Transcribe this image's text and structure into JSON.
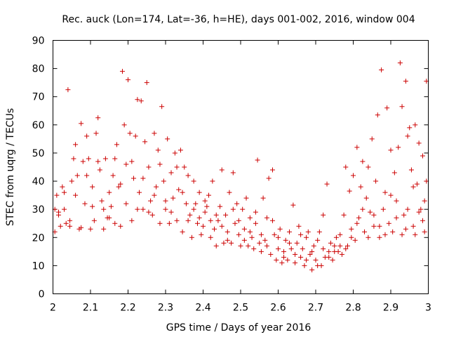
{
  "chart_data": {
    "type": "scatter",
    "title": "Rec. auck (Lon=174, Lat=-36, h=HE), days 001-002, 2016, window 004",
    "xlabel": "GPS time / Days of year 2016",
    "ylabel": "STEC from uqrg / TECUs",
    "xlim": [
      2,
      3
    ],
    "ylim": [
      0,
      90
    ],
    "xticks": [
      2,
      2.1,
      2.2,
      2.3,
      2.4,
      2.5,
      2.6,
      2.7,
      2.8,
      2.9,
      3
    ],
    "xtick_labels": [
      "2",
      "2.1",
      "2.2",
      "2.3",
      "2.4",
      "2.5",
      "2.6",
      "2.7",
      "2.8",
      "2.9",
      "3"
    ],
    "yticks": [
      0,
      10,
      20,
      30,
      40,
      50,
      60,
      70,
      80,
      90
    ],
    "ytick_labels": [
      "0",
      "10",
      "20",
      "30",
      "40",
      "50",
      "60",
      "70",
      "80",
      "90"
    ],
    "grid": false,
    "marker": "+",
    "color": "#cc0000",
    "series": [
      {
        "name": "STEC",
        "points": [
          [
            2.005,
            30
          ],
          [
            2.005,
            22
          ],
          [
            2.01,
            35
          ],
          [
            2.015,
            29
          ],
          [
            2.02,
            24
          ],
          [
            2.025,
            38
          ],
          [
            2.03,
            30
          ],
          [
            2.035,
            25
          ],
          [
            2.04,
            72.5
          ],
          [
            2.045,
            24
          ],
          [
            2.05,
            40
          ],
          [
            2.055,
            48
          ],
          [
            2.06,
            53
          ],
          [
            2.065,
            42
          ],
          [
            2.07,
            23
          ],
          [
            2.075,
            60.5
          ],
          [
            2.08,
            47
          ],
          [
            2.085,
            32
          ],
          [
            2.09,
            56
          ],
          [
            2.095,
            48
          ],
          [
            2.1,
            23
          ],
          [
            2.105,
            38
          ],
          [
            2.11,
            26
          ],
          [
            2.115,
            57
          ],
          [
            2.12,
            62.5
          ],
          [
            2.125,
            44
          ],
          [
            2.13,
            33
          ],
          [
            2.135,
            23
          ],
          [
            2.14,
            48
          ],
          [
            2.145,
            27
          ],
          [
            2.15,
            36
          ],
          [
            2.155,
            31
          ],
          [
            2.16,
            42
          ],
          [
            2.165,
            48
          ],
          [
            2.17,
            53
          ],
          [
            2.175,
            38
          ],
          [
            2.18,
            24
          ],
          [
            2.185,
            79
          ],
          [
            2.19,
            60
          ],
          [
            2.195,
            46
          ],
          [
            2.2,
            76
          ],
          [
            2.205,
            57
          ],
          [
            2.21,
            26
          ],
          [
            2.215,
            41
          ],
          [
            2.22,
            56
          ],
          [
            2.225,
            69
          ],
          [
            2.23,
            36
          ],
          [
            2.235,
            68.5
          ],
          [
            2.24,
            30
          ],
          [
            2.245,
            54
          ],
          [
            2.25,
            75
          ],
          [
            2.255,
            45
          ],
          [
            2.26,
            33
          ],
          [
            2.265,
            28
          ],
          [
            2.27,
            57
          ],
          [
            2.275,
            38
          ],
          [
            2.28,
            51
          ],
          [
            2.285,
            25
          ],
          [
            2.29,
            66.5
          ],
          [
            2.295,
            40
          ],
          [
            2.3,
            30
          ],
          [
            2.305,
            55
          ],
          [
            2.31,
            25
          ],
          [
            2.315,
            43
          ],
          [
            2.32,
            34
          ],
          [
            2.325,
            50
          ],
          [
            2.33,
            26
          ],
          [
            2.335,
            37
          ],
          [
            2.34,
            51
          ],
          [
            2.345,
            22
          ],
          [
            2.35,
            45
          ],
          [
            2.355,
            32
          ],
          [
            2.36,
            42
          ],
          [
            2.365,
            28
          ],
          [
            2.37,
            20
          ],
          [
            2.375,
            40
          ],
          [
            2.38,
            32
          ],
          [
            2.385,
            25
          ],
          [
            2.39,
            36
          ],
          [
            2.395,
            21
          ],
          [
            2.4,
            24
          ],
          [
            2.405,
            29
          ],
          [
            2.41,
            31
          ],
          [
            2.415,
            35
          ],
          [
            2.42,
            20
          ],
          [
            2.425,
            40
          ],
          [
            2.43,
            23
          ],
          [
            2.435,
            17
          ],
          [
            2.44,
            26
          ],
          [
            2.445,
            31
          ],
          [
            2.45,
            44
          ],
          [
            2.455,
            18
          ],
          [
            2.46,
            28
          ],
          [
            2.465,
            22
          ],
          [
            2.47,
            36
          ],
          [
            2.475,
            18
          ],
          [
            2.48,
            43
          ],
          [
            2.485,
            25
          ],
          [
            2.49,
            32
          ],
          [
            2.495,
            21
          ],
          [
            2.5,
            17
          ],
          [
            2.505,
            30
          ],
          [
            2.51,
            23
          ],
          [
            2.515,
            34
          ],
          [
            2.52,
            17
          ],
          [
            2.525,
            27
          ],
          [
            2.53,
            20
          ],
          [
            2.535,
            16
          ],
          [
            2.54,
            29
          ],
          [
            2.545,
            47.5
          ],
          [
            2.55,
            18
          ],
          [
            2.555,
            15
          ],
          [
            2.56,
            34
          ],
          [
            2.565,
            19
          ],
          [
            2.57,
            27
          ],
          [
            2.575,
            41
          ],
          [
            2.58,
            14
          ],
          [
            2.585,
            44
          ],
          [
            2.59,
            21
          ],
          [
            2.595,
            12
          ],
          [
            2.6,
            20
          ],
          [
            2.605,
            23
          ],
          [
            2.61,
            11
          ],
          [
            2.615,
            15
          ],
          [
            2.62,
            19
          ],
          [
            2.625,
            12
          ],
          [
            2.63,
            22
          ],
          [
            2.635,
            16
          ],
          [
            2.64,
            31.5
          ],
          [
            2.645,
            11
          ],
          [
            2.65,
            18
          ],
          [
            2.655,
            24
          ],
          [
            2.66,
            13
          ],
          [
            2.665,
            16
          ],
          [
            2.67,
            10
          ],
          [
            2.675,
            20
          ],
          [
            2.68,
            22
          ],
          [
            2.685,
            14
          ],
          [
            2.69,
            8.5
          ],
          [
            2.695,
            17
          ],
          [
            2.7,
            12
          ],
          [
            2.705,
            19
          ],
          [
            2.71,
            22
          ],
          [
            2.715,
            10
          ],
          [
            2.72,
            28
          ],
          [
            2.725,
            13
          ],
          [
            2.73,
            39
          ],
          [
            2.735,
            15
          ],
          [
            2.74,
            18
          ],
          [
            2.745,
            12
          ],
          [
            2.75,
            17
          ],
          [
            2.755,
            20
          ],
          [
            2.76,
            15
          ],
          [
            2.765,
            21
          ],
          [
            2.77,
            14
          ],
          [
            2.775,
            28
          ],
          [
            2.78,
            45
          ],
          [
            2.785,
            17
          ],
          [
            2.79,
            36.5
          ],
          [
            2.795,
            23
          ],
          [
            2.8,
            42
          ],
          [
            2.805,
            19
          ],
          [
            2.81,
            52
          ],
          [
            2.815,
            27
          ],
          [
            2.82,
            38
          ],
          [
            2.825,
            47
          ],
          [
            2.83,
            22
          ],
          [
            2.835,
            34
          ],
          [
            2.84,
            45
          ],
          [
            2.845,
            29
          ],
          [
            2.85,
            55
          ],
          [
            2.855,
            24
          ],
          [
            2.86,
            40
          ],
          [
            2.865,
            63.5
          ],
          [
            2.87,
            20
          ],
          [
            2.875,
            79.5
          ],
          [
            2.88,
            30
          ],
          [
            2.885,
            36
          ],
          [
            2.89,
            66
          ],
          [
            2.895,
            25
          ],
          [
            2.9,
            51
          ],
          [
            2.905,
            22
          ],
          [
            2.91,
            43
          ],
          [
            2.915,
            33
          ],
          [
            2.92,
            52
          ],
          [
            2.925,
            82
          ],
          [
            2.93,
            66.5
          ],
          [
            2.935,
            28
          ],
          [
            2.94,
            75.5
          ],
          [
            2.945,
            56
          ],
          [
            2.95,
            59
          ],
          [
            2.955,
            44
          ],
          [
            2.96,
            24
          ],
          [
            2.965,
            60
          ],
          [
            2.97,
            39
          ],
          [
            2.975,
            53.5
          ],
          [
            2.98,
            30
          ],
          [
            2.985,
            49
          ],
          [
            2.99,
            22
          ],
          [
            2.995,
            75.5
          ],
          [
            2.995,
            40
          ],
          [
            2.015,
            28
          ],
          [
            2.03,
            36
          ],
          [
            2.045,
            26
          ],
          [
            2.06,
            35
          ],
          [
            2.075,
            23.5
          ],
          [
            2.09,
            42
          ],
          [
            2.105,
            31
          ],
          [
            2.12,
            47
          ],
          [
            2.135,
            30
          ],
          [
            2.15,
            27
          ],
          [
            2.165,
            25
          ],
          [
            2.18,
            39
          ],
          [
            2.195,
            32
          ],
          [
            2.21,
            47
          ],
          [
            2.225,
            30
          ],
          [
            2.24,
            41
          ],
          [
            2.255,
            29
          ],
          [
            2.27,
            35
          ],
          [
            2.285,
            46
          ],
          [
            2.3,
            33
          ],
          [
            2.315,
            29
          ],
          [
            2.33,
            45
          ],
          [
            2.345,
            36
          ],
          [
            2.36,
            26
          ],
          [
            2.375,
            30
          ],
          [
            2.39,
            27
          ],
          [
            2.405,
            33
          ],
          [
            2.42,
            26
          ],
          [
            2.435,
            28
          ],
          [
            2.45,
            24
          ],
          [
            2.465,
            19
          ],
          [
            2.48,
            30
          ],
          [
            2.495,
            26
          ],
          [
            2.51,
            19
          ],
          [
            2.525,
            22
          ],
          [
            2.54,
            25
          ],
          [
            2.555,
            21
          ],
          [
            2.57,
            17
          ],
          [
            2.585,
            26
          ],
          [
            2.6,
            16
          ],
          [
            2.615,
            13
          ],
          [
            2.63,
            18
          ],
          [
            2.645,
            14
          ],
          [
            2.66,
            21
          ],
          [
            2.675,
            12
          ],
          [
            2.69,
            15
          ],
          [
            2.705,
            10
          ],
          [
            2.72,
            16
          ],
          [
            2.735,
            13
          ],
          [
            2.75,
            15
          ],
          [
            2.765,
            17
          ],
          [
            2.78,
            16
          ],
          [
            2.795,
            20
          ],
          [
            2.81,
            25
          ],
          [
            2.825,
            30
          ],
          [
            2.84,
            20
          ],
          [
            2.855,
            28
          ],
          [
            2.87,
            24
          ],
          [
            2.885,
            21
          ],
          [
            2.9,
            35
          ],
          [
            2.915,
            27
          ],
          [
            2.93,
            21
          ],
          [
            2.945,
            30
          ],
          [
            2.96,
            38
          ],
          [
            2.975,
            29
          ],
          [
            2.99,
            33
          ],
          [
            2.985,
            26
          ],
          [
            2.965,
            21
          ],
          [
            2.94,
            23
          ]
        ]
      }
    ]
  }
}
